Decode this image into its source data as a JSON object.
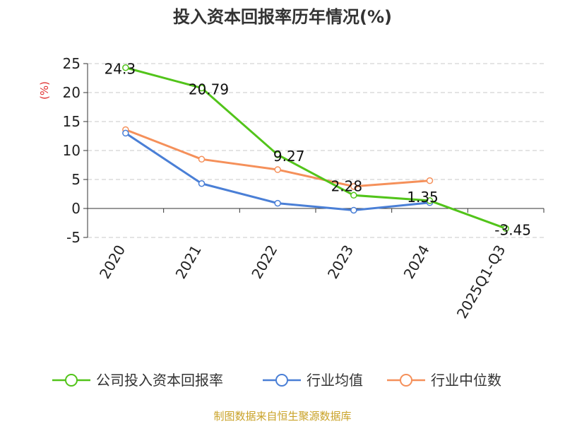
{
  "title": "投入资本回报率历年情况(%)",
  "source": "制图数据来自恒生聚源数据库",
  "chart_data": {
    "type": "line",
    "title": "投入资本回报率历年情况(%)",
    "ylabel": "(%)",
    "ylim": [
      -5,
      25
    ],
    "yticks": [
      25,
      20,
      15,
      10,
      5,
      0,
      -5
    ],
    "grid": true,
    "legend_position": "bottom",
    "categories": [
      "2020",
      "2021",
      "2022",
      "2023",
      "2024",
      "2025Q1-Q3"
    ],
    "series": [
      {
        "name": "公司投入资本回报率",
        "color": "#52c41a",
        "values": [
          24.3,
          20.79,
          9.27,
          2.28,
          1.35,
          -3.45
        ],
        "labels": [
          "24.3",
          "20.79",
          "9.27",
          "2.28",
          "1.35",
          "-3.45"
        ]
      },
      {
        "name": "行业均值",
        "color": "#4a7fd6",
        "values": [
          13.0,
          4.3,
          0.9,
          -0.3,
          1.0,
          null
        ]
      },
      {
        "name": "行业中位数",
        "color": "#f5905a",
        "values": [
          13.6,
          8.5,
          6.7,
          3.8,
          4.8,
          null
        ]
      }
    ]
  }
}
